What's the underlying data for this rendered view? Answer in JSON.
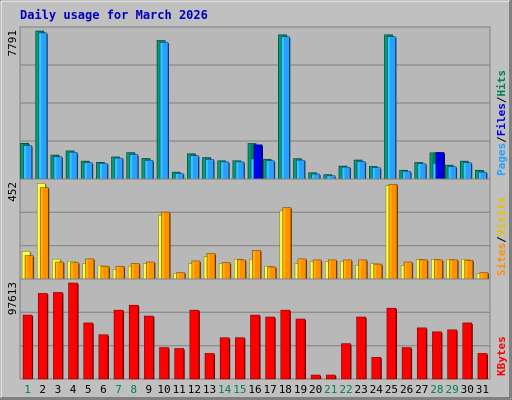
{
  "chart_data": {
    "type": "bar",
    "title": "Daily usage for March 2026",
    "categories": [
      "1",
      "2",
      "3",
      "4",
      "5",
      "6",
      "7",
      "8",
      "9",
      "10",
      "11",
      "12",
      "13",
      "14",
      "15",
      "16",
      "17",
      "18",
      "19",
      "20",
      "21",
      "22",
      "23",
      "24",
      "25",
      "26",
      "27",
      "28",
      "29",
      "30",
      "31"
    ],
    "weekend_days": [
      "1",
      "7",
      "8",
      "14",
      "15",
      "21",
      "22",
      "28",
      "29"
    ],
    "panels": [
      {
        "id": "hits",
        "ymax_label": "7791",
        "ylim": [
          0,
          7791
        ],
        "axis_labels": [
          "Pages",
          "/",
          "Files",
          "/",
          "Hits"
        ],
        "series": [
          {
            "name": "Hits",
            "color": "#00805c",
            "values": [
              1880,
              7791,
              1260,
              1480,
              940,
              880,
              1160,
              1390,
              1080,
              7291,
              360,
              1330,
              1130,
              960,
              960,
              1870,
              1040,
              7591,
              1070,
              330,
              230,
              680,
              1000,
              660,
              7591,
              460,
              870,
              1380,
              730,
              940,
              460
            ]
          },
          {
            "name": "Files",
            "color": "#29a0ff",
            "values": [
              1760,
              7691,
              1170,
              1400,
              860,
              820,
              1100,
              1290,
              980,
              7191,
              290,
              1230,
              1030,
              900,
              900,
              1060,
              960,
              7491,
              990,
              260,
              180,
              620,
              920,
              600,
              7491,
              400,
              810,
              830,
              650,
              860,
              360
            ]
          },
          {
            "name": "Pages",
            "color": "#0000e0",
            "values": [
              0,
              0,
              0,
              0,
              0,
              0,
              0,
              0,
              0,
              0,
              0,
              0,
              0,
              0,
              0,
              1800,
              0,
              0,
              0,
              0,
              0,
              0,
              0,
              0,
              0,
              0,
              0,
              1400,
              0,
              0,
              0
            ]
          }
        ]
      },
      {
        "id": "visits",
        "ymax_label": "452",
        "ylim": [
          0,
          452
        ],
        "axis_labels": [
          "Sites",
          "/",
          "Visits"
        ],
        "series": [
          {
            "name": "Visits",
            "color": "#ffff40",
            "values": [
              130,
              450,
              93,
              83,
              73,
              64,
              45,
              60,
              73,
              300,
              26,
              73,
              105,
              73,
              93,
              92,
              60,
              321,
              73,
              83,
              83,
              83,
              64,
              73,
              440,
              64,
              92,
              92,
              92,
              92,
              26
            ]
          },
          {
            "name": "Sites",
            "color": "#ff9000",
            "values": [
              110,
              430,
              80,
              77,
              95,
              60,
              60,
              73,
              80,
              315,
              30,
              85,
              120,
              77,
              90,
              135,
              57,
              336,
              95,
              90,
              90,
              90,
              90,
              70,
              446,
              80,
              90,
              90,
              90,
              88,
              30
            ]
          }
        ]
      },
      {
        "id": "kbytes",
        "ymax_label": "97613",
        "ylim": [
          0,
          97613
        ],
        "axis_labels": [
          "KBytes"
        ],
        "series": [
          {
            "name": "KBytes",
            "color": "#ff0000",
            "values": [
              65000,
              87000,
              88000,
              97613,
              57000,
              45000,
              70000,
              75000,
              64000,
              32000,
              31000,
              70000,
              26000,
              42000,
              42000,
              65000,
              63000,
              70000,
              61000,
              4000,
              4000,
              36000,
              63000,
              22000,
              72000,
              32000,
              52000,
              48000,
              50000,
              57000,
              26000
            ]
          }
        ]
      }
    ]
  }
}
